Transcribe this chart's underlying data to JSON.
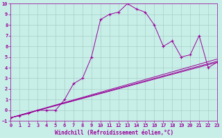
{
  "title": "",
  "xlabel": "Windchill (Refroidissement éolien,°C)",
  "background_color": "#c8eee8",
  "grid_color": "#a0c8c0",
  "line_color": "#990099",
  "xlim": [
    0,
    23
  ],
  "ylim": [
    -1,
    10
  ],
  "xticks": [
    0,
    1,
    2,
    3,
    4,
    5,
    6,
    7,
    8,
    9,
    10,
    11,
    12,
    13,
    14,
    15,
    16,
    17,
    18,
    19,
    20,
    21,
    22,
    23
  ],
  "yticks": [
    -1,
    0,
    1,
    2,
    3,
    4,
    5,
    6,
    7,
    8,
    9,
    10
  ],
  "series": [
    {
      "x": [
        0,
        1,
        2,
        3,
        4,
        5,
        6,
        7,
        8,
        9,
        10,
        11,
        12,
        13,
        14,
        15,
        16,
        17,
        18,
        19,
        20,
        21,
        22,
        23
      ],
      "y": [
        -0.7,
        -0.5,
        -0.3,
        0.0,
        0.0,
        0.0,
        1.0,
        2.5,
        3.0,
        5.0,
        8.5,
        9.0,
        9.2,
        10.0,
        9.5,
        9.2,
        8.0,
        6.0,
        6.5,
        5.0,
        5.2,
        7.0,
        4.0,
        4.5
      ],
      "marker": "+"
    },
    {
      "x": [
        0,
        23
      ],
      "y": [
        -0.7,
        4.5
      ],
      "marker": null
    },
    {
      "x": [
        0,
        23
      ],
      "y": [
        -0.7,
        4.6
      ],
      "marker": null
    },
    {
      "x": [
        0,
        23
      ],
      "y": [
        -0.7,
        4.8
      ],
      "marker": null
    }
  ]
}
